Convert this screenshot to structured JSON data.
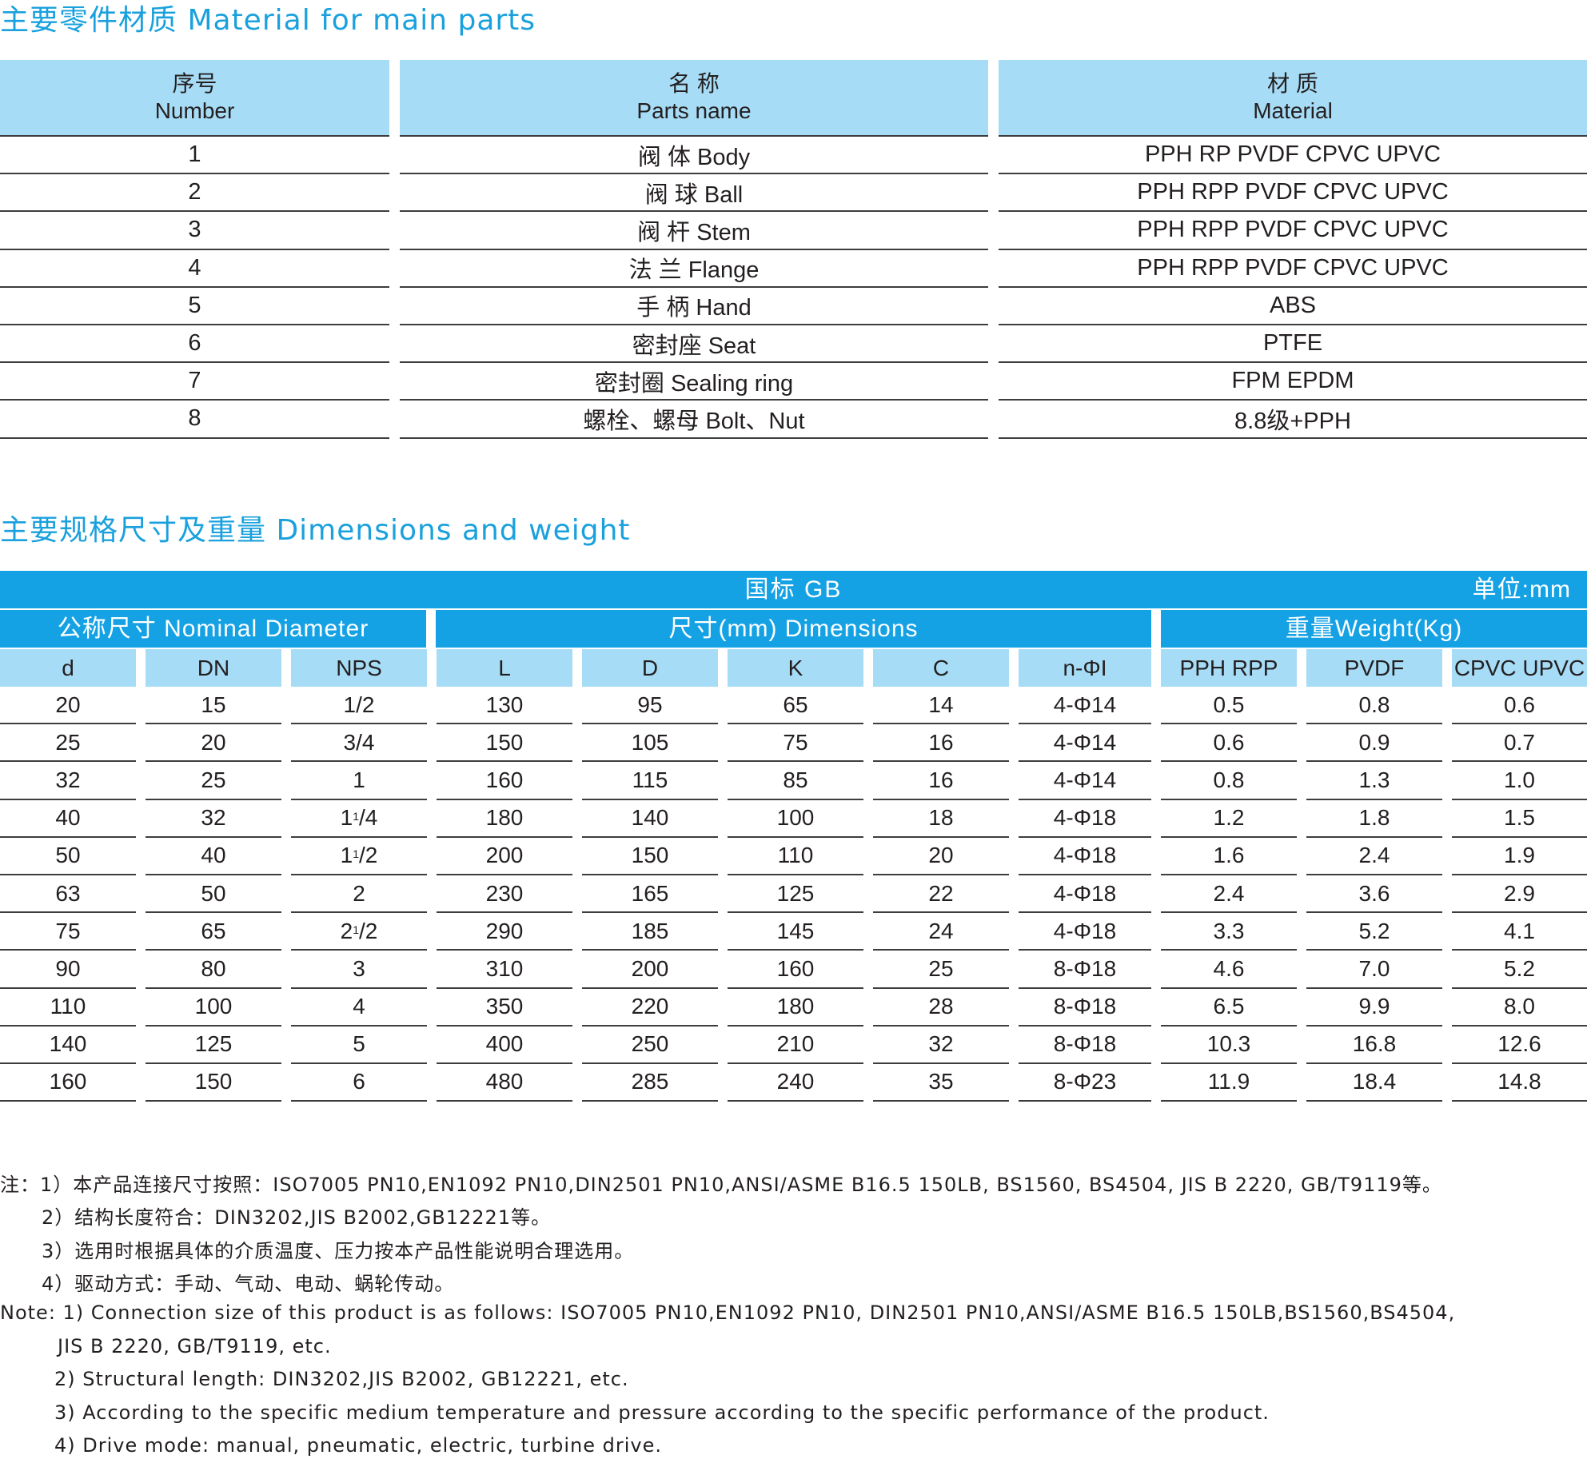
{
  "parts_title": "主要零件材质  Material for main parts",
  "parts": {
    "headers": [
      {
        "cn": "序号",
        "en": "Number"
      },
      {
        "cn": "名 称",
        "en": "Parts name"
      },
      {
        "cn": "材 质",
        "en": "Material"
      }
    ],
    "rows": [
      {
        "no": "1",
        "name": "阀 体  Body",
        "material": "PPH  RP  PVDF  CPVC  UPVC"
      },
      {
        "no": "2",
        "name": "阀 球  Ball",
        "material": "PPH  RPP  PVDF  CPVC  UPVC"
      },
      {
        "no": "3",
        "name": "阀 杆  Stem",
        "material": "PPH  RPP  PVDF  CPVC  UPVC"
      },
      {
        "no": "4",
        "name": "法 兰  Flange",
        "material": "PPH  RPP  PVDF  CPVC  UPVC"
      },
      {
        "no": "5",
        "name": "手 柄  Hand",
        "material": "ABS"
      },
      {
        "no": "6",
        "name": "密封座  Seat",
        "material": "PTFE"
      },
      {
        "no": "7",
        "name": "密封圈  Sealing ring",
        "material": "FPM  EPDM"
      },
      {
        "no": "8",
        "name": "螺栓、螺母  Bolt、Nut",
        "material": "8.8级+PPH"
      }
    ]
  },
  "dims_title": "主要规格尺寸及重量  Dimensions and weight",
  "dims": {
    "standard": "国标 GB",
    "unit": "单位:mm",
    "groups": [
      "公称尺寸  Nominal Diameter",
      "尺寸(mm)   Dimensions",
      "重量Weight(Kg)"
    ],
    "columns": [
      "d",
      "DN",
      "NPS",
      "L",
      "D",
      "K",
      "C",
      "n-ΦI",
      "PPH RPP",
      "PVDF",
      "CPVC UPVC"
    ],
    "rows": [
      {
        "d": "20",
        "dn": "15",
        "nps": "1/2",
        "l": "130",
        "D": "95",
        "k": "65",
        "c": "14",
        "n": "4-Φ14",
        "w1": "0.5",
        "w2": "0.8",
        "w3": "0.6"
      },
      {
        "d": "25",
        "dn": "20",
        "nps": "3/4",
        "l": "150",
        "D": "105",
        "k": "75",
        "c": "16",
        "n": "4-Φ14",
        "w1": "0.6",
        "w2": "0.9",
        "w3": "0.7"
      },
      {
        "d": "32",
        "dn": "25",
        "nps": "1",
        "l": "160",
        "D": "115",
        "k": "85",
        "c": "16",
        "n": "4-Φ14",
        "w1": "0.8",
        "w2": "1.3",
        "w3": "1.0"
      },
      {
        "d": "40",
        "dn": "32",
        "nps_whole": "1",
        "nps_sup": "1",
        "nps_frac": "/4",
        "l": "180",
        "D": "140",
        "k": "100",
        "c": "18",
        "n": "4-Φ18",
        "w1": "1.2",
        "w2": "1.8",
        "w3": "1.5"
      },
      {
        "d": "50",
        "dn": "40",
        "nps_whole": "1",
        "nps_sup": "1",
        "nps_frac": "/2",
        "l": "200",
        "D": "150",
        "k": "110",
        "c": "20",
        "n": "4-Φ18",
        "w1": "1.6",
        "w2": "2.4",
        "w3": "1.9"
      },
      {
        "d": "63",
        "dn": "50",
        "nps": "2",
        "l": "230",
        "D": "165",
        "k": "125",
        "c": "22",
        "n": "4-Φ18",
        "w1": "2.4",
        "w2": "3.6",
        "w3": "2.9"
      },
      {
        "d": "75",
        "dn": "65",
        "nps_whole": "2",
        "nps_sup": "1",
        "nps_frac": "/2",
        "l": "290",
        "D": "185",
        "k": "145",
        "c": "24",
        "n": "4-Φ18",
        "w1": "3.3",
        "w2": "5.2",
        "w3": "4.1"
      },
      {
        "d": "90",
        "dn": "80",
        "nps": "3",
        "l": "310",
        "D": "200",
        "k": "160",
        "c": "25",
        "n": "8-Φ18",
        "w1": "4.6",
        "w2": "7.0",
        "w3": "5.2"
      },
      {
        "d": "110",
        "dn": "100",
        "nps": "4",
        "l": "350",
        "D": "220",
        "k": "180",
        "c": "28",
        "n": "8-Φ18",
        "w1": "6.5",
        "w2": "9.9",
        "w3": "8.0"
      },
      {
        "d": "140",
        "dn": "125",
        "nps": "5",
        "l": "400",
        "D": "250",
        "k": "210",
        "c": "32",
        "n": "8-Φ18",
        "w1": "10.3",
        "w2": "16.8",
        "w3": "12.6"
      },
      {
        "d": "160",
        "dn": "150",
        "nps": "6",
        "l": "480",
        "D": "285",
        "k": "240",
        "c": "35",
        "n": "8-Φ23",
        "w1": "11.9",
        "w2": "18.4",
        "w3": "14.8"
      }
    ]
  },
  "notes": [
    "注：1）本产品连接尺寸按照：ISO7005 PN10,EN1092 PN10,DIN2501 PN10,ANSI/ASME B16.5 150LB, BS1560, BS4504,  JIS B 2220, GB/T9119等。",
    "2）结构长度符合：DIN3202,JIS B2002,GB12221等。",
    "3）选用时根据具体的介质温度、压力按本产品性能说明合理选用。",
    "4）驱动方式：手动、气动、电动、蜗轮传动。",
    "Note: 1) Connection size of this product is as follows: ISO7005 PN10,EN1092 PN10, DIN2501 PN10,ANSI/ASME B16.5 150LB,BS1560,BS4504,",
    "JIS B 2220, GB/T9119,  etc.",
    "2) Structural length: DIN3202,JIS B2002, GB12221, etc.",
    "3) According to the specific medium temperature and pressure according to the specific performance of the product.",
    "4) Drive mode: manual, pneumatic, electric, turbine drive."
  ],
  "colors": {
    "accent_blue": "#15a2e4",
    "light_blue": "#a7dcf6",
    "title_blue": "#1aa1dd"
  }
}
